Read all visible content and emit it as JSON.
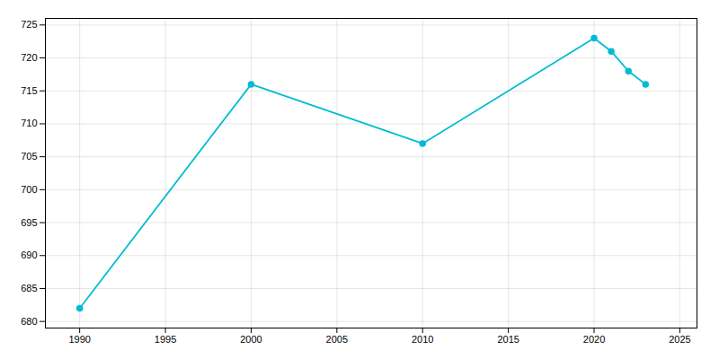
{
  "chart_data": {
    "type": "line",
    "x": [
      1990,
      2000,
      2010,
      2020,
      2021,
      2022,
      2023
    ],
    "values": [
      682,
      716,
      707,
      723,
      721,
      718,
      716
    ],
    "color": "#00BCD4",
    "marker": "circle",
    "xlim": [
      1988,
      2026
    ],
    "ylim": [
      679,
      726
    ],
    "xticks": [
      1990,
      1995,
      2000,
      2005,
      2010,
      2015,
      2020,
      2025
    ],
    "yticks": [
      680,
      685,
      690,
      695,
      700,
      705,
      710,
      715,
      720,
      725
    ],
    "grid": true
  }
}
